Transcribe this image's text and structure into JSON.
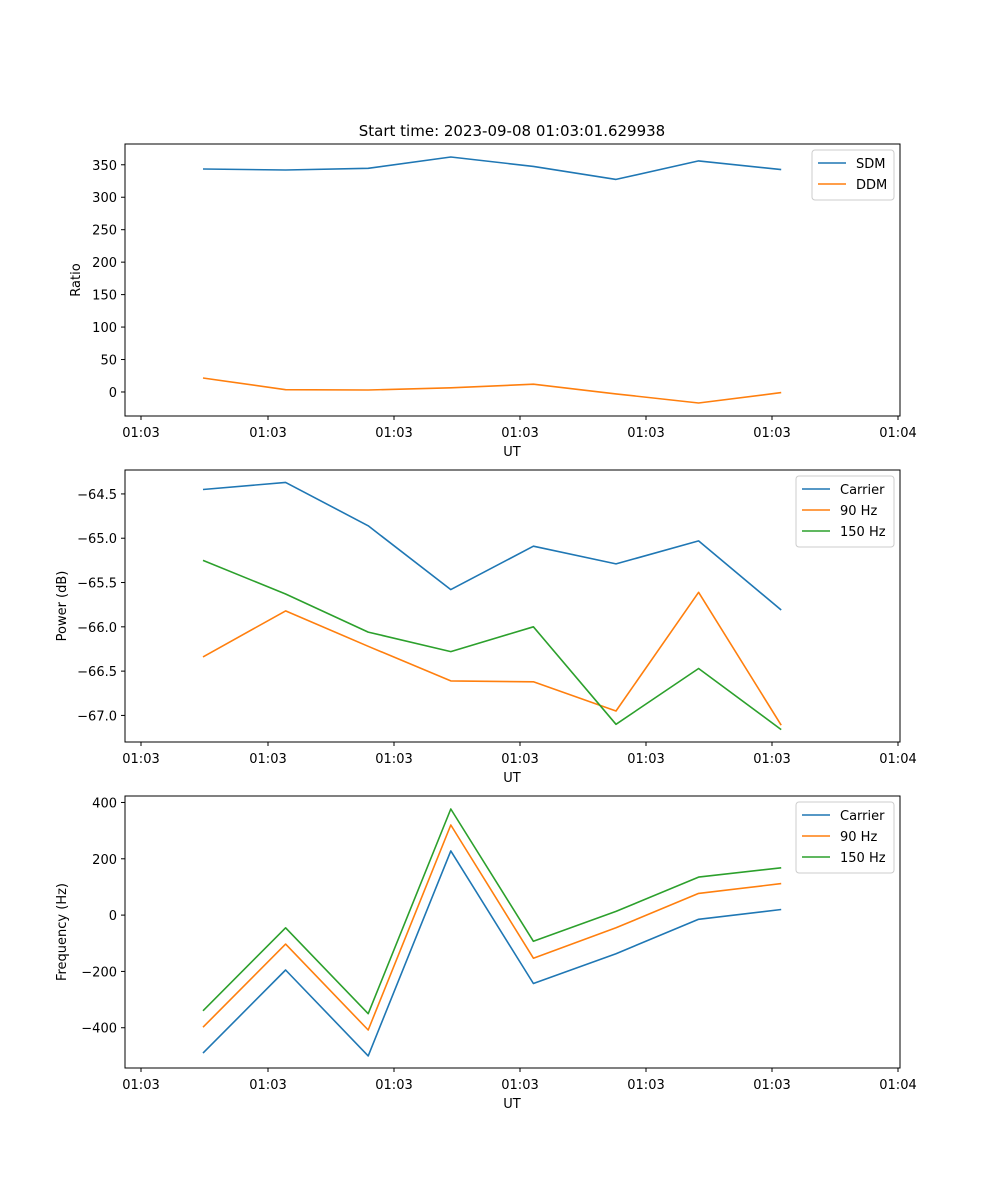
{
  "figure_title": "Start time: 2023-09-08 01:03:01.629938",
  "colors": {
    "c0": "#1f77b4",
    "c1": "#ff7f0e",
    "c2": "#2ca02c"
  },
  "chart_data": [
    {
      "type": "line",
      "title": "Start time: 2023-09-08 01:03:01.629938",
      "xlabel": "UT",
      "ylabel": "Ratio",
      "x_ticks": [
        "01:03",
        "01:03",
        "01:03",
        "01:03",
        "01:03",
        "01:03",
        "01:04"
      ],
      "y_ticks": [
        "0",
        "50",
        "100",
        "150",
        "200",
        "250",
        "300",
        "350"
      ],
      "y_tick_values": [
        0,
        50,
        100,
        150,
        200,
        250,
        300,
        350
      ],
      "ylim": [
        -37,
        382
      ],
      "x_index": [
        1,
        2,
        3,
        4,
        5,
        6,
        7,
        8
      ],
      "legend_position": "top-right",
      "series": [
        {
          "name": "SDM",
          "color": "#1f77b4",
          "values": [
            343.5,
            342,
            344.5,
            362,
            347.5,
            327.5,
            356,
            342.5
          ]
        },
        {
          "name": "DDM",
          "color": "#ff7f0e",
          "values": [
            21.5,
            3.5,
            3,
            6.5,
            12,
            -3,
            -17,
            -1
          ]
        }
      ]
    },
    {
      "type": "line",
      "title": "",
      "xlabel": "UT",
      "ylabel": "Power (dB)",
      "x_ticks": [
        "01:03",
        "01:03",
        "01:03",
        "01:03",
        "01:03",
        "01:03",
        "01:04"
      ],
      "y_ticks": [
        "−64.5",
        "−65.0",
        "−65.5",
        "−66.0",
        "−66.5",
        "−67.0"
      ],
      "y_tick_values": [
        -64.5,
        -65.0,
        -65.5,
        -66.0,
        -66.5,
        -67.0
      ],
      "ylim": [
        -67.3,
        -64.23
      ],
      "x_index": [
        1,
        2,
        3,
        4,
        5,
        6,
        7,
        8
      ],
      "legend_position": "top-right",
      "series": [
        {
          "name": "Carrier",
          "color": "#1f77b4",
          "values": [
            -64.45,
            -64.37,
            -64.86,
            -65.58,
            -65.09,
            -65.29,
            -65.03,
            -65.81
          ]
        },
        {
          "name": "90 Hz",
          "color": "#ff7f0e",
          "values": [
            -66.34,
            -65.82,
            -66.22,
            -66.61,
            -66.62,
            -66.95,
            -65.61,
            -67.11
          ]
        },
        {
          "name": "150 Hz",
          "color": "#2ca02c",
          "values": [
            -65.25,
            -65.63,
            -66.06,
            -66.28,
            -66.0,
            -67.1,
            -66.47,
            -67.16
          ]
        }
      ]
    },
    {
      "type": "line",
      "title": "",
      "xlabel": "UT",
      "ylabel": "Frequency (Hz)",
      "x_ticks": [
        "01:03",
        "01:03",
        "01:03",
        "01:03",
        "01:03",
        "01:03",
        "01:04"
      ],
      "y_ticks": [
        "400",
        "200",
        "0",
        "−200",
        "−400"
      ],
      "y_tick_values": [
        400,
        200,
        0,
        -200,
        -400
      ],
      "ylim": [
        -543,
        423
      ],
      "x_index": [
        1,
        2,
        3,
        4,
        5,
        6,
        7,
        8
      ],
      "legend_position": "top-right",
      "series": [
        {
          "name": "Carrier",
          "color": "#1f77b4",
          "values": [
            -490,
            -195,
            -500,
            228,
            -243,
            -137,
            -15,
            20
          ]
        },
        {
          "name": "90 Hz",
          "color": "#ff7f0e",
          "values": [
            -398,
            -103,
            -408,
            320,
            -153,
            -45,
            77,
            112
          ]
        },
        {
          "name": "150 Hz",
          "color": "#2ca02c",
          "values": [
            -340,
            -45,
            -350,
            377,
            -93,
            13,
            135,
            168
          ]
        }
      ]
    }
  ]
}
